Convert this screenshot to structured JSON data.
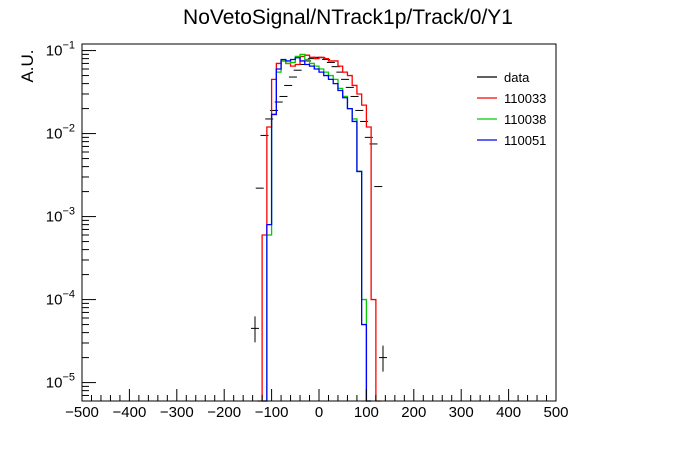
{
  "chart_data": {
    "type": "line",
    "title": "NoVetoSignal/NTrack1p/Track/0/Y1",
    "ylabel": "A.U.",
    "xlabel": "",
    "xlim": [
      -500,
      500
    ],
    "ylim": [
      6e-06,
      0.12
    ],
    "yscale": "log",
    "grid": false,
    "legend_position": "top-right",
    "x_ticks": [
      -500,
      -400,
      -300,
      -200,
      -100,
      0,
      100,
      200,
      300,
      400,
      500
    ],
    "y_ticks": [
      {
        "value": 1e-05,
        "label": "10^{-5}"
      },
      {
        "value": 0.0001,
        "label": "10^{-4}"
      },
      {
        "value": 0.001,
        "label": "10^{-3}"
      },
      {
        "value": 0.01,
        "label": "10^{-2}"
      },
      {
        "value": 0.1,
        "label": "10^{-1}"
      }
    ],
    "bin_width": 10,
    "series": [
      {
        "name": "data",
        "color": "#000000",
        "style": "points",
        "points": [
          {
            "x": -135,
            "y": 4.5e-05
          },
          {
            "x": -125,
            "y": 0.0022
          },
          {
            "x": -115,
            "y": 0.0095
          },
          {
            "x": -105,
            "y": 0.015
          },
          {
            "x": -95,
            "y": 0.019
          },
          {
            "x": -85,
            "y": 0.024
          },
          {
            "x": -75,
            "y": 0.028
          },
          {
            "x": -65,
            "y": 0.038
          },
          {
            "x": -55,
            "y": 0.048
          },
          {
            "x": -45,
            "y": 0.058
          },
          {
            "x": -35,
            "y": 0.068
          },
          {
            "x": -25,
            "y": 0.075
          },
          {
            "x": -15,
            "y": 0.08
          },
          {
            "x": -5,
            "y": 0.083
          },
          {
            "x": 5,
            "y": 0.082
          },
          {
            "x": 15,
            "y": 0.078
          },
          {
            "x": 25,
            "y": 0.072
          },
          {
            "x": 35,
            "y": 0.064
          },
          {
            "x": 45,
            "y": 0.055
          },
          {
            "x": 55,
            "y": 0.045
          },
          {
            "x": 65,
            "y": 0.036
          },
          {
            "x": 75,
            "y": 0.028
          },
          {
            "x": 85,
            "y": 0.019
          },
          {
            "x": 95,
            "y": 0.014
          },
          {
            "x": 105,
            "y": 0.009
          },
          {
            "x": 115,
            "y": 0.0075
          },
          {
            "x": 125,
            "y": 0.0023
          },
          {
            "x": 135,
            "y": 2e-05
          }
        ]
      },
      {
        "name": "110033",
        "color": "#ff0000",
        "style": "step",
        "x_start": -130,
        "values": [
          6e-06,
          0.0006,
          0.012,
          0.045,
          0.07,
          0.075,
          0.07,
          0.065,
          0.068,
          0.085,
          0.088,
          0.083,
          0.08,
          0.083,
          0.08,
          0.075,
          0.075,
          0.065,
          0.055,
          0.05,
          0.038,
          0.03,
          0.022,
          0.012,
          0.0001,
          6e-06
        ]
      },
      {
        "name": "110038",
        "color": "#00cc00",
        "style": "step",
        "x_start": -120,
        "values": [
          6e-06,
          0.0006,
          0.017,
          0.055,
          0.075,
          0.07,
          0.072,
          0.085,
          0.09,
          0.078,
          0.07,
          0.065,
          0.06,
          0.055,
          0.05,
          0.045,
          0.035,
          0.028,
          0.02,
          0.015,
          0.0035,
          0.0001,
          6e-06
        ]
      },
      {
        "name": "110051",
        "color": "#0000ff",
        "style": "step",
        "x_start": -120,
        "values": [
          6e-06,
          0.0008,
          0.017,
          0.06,
          0.078,
          0.075,
          0.078,
          0.082,
          0.075,
          0.068,
          0.065,
          0.06,
          0.055,
          0.05,
          0.045,
          0.04,
          0.033,
          0.027,
          0.02,
          0.014,
          0.0035,
          5e-05,
          6e-06
        ]
      }
    ]
  }
}
